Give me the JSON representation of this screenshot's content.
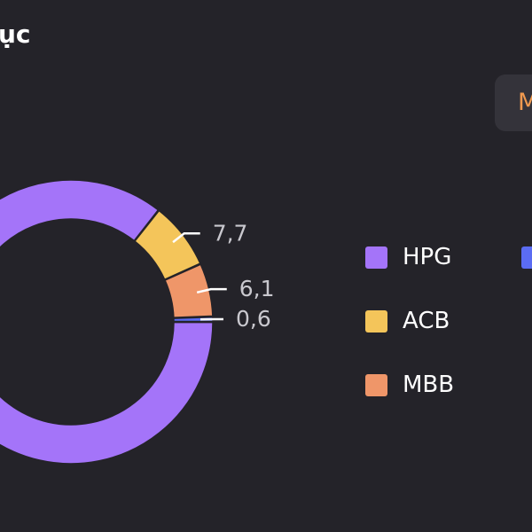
{
  "header": {
    "title": "ục",
    "tab_label": "M"
  },
  "colors": {
    "background": "#242329",
    "leader_line": "#ffffff",
    "value_label": "#c9c8ce"
  },
  "chart_data": {
    "type": "pie",
    "title": "",
    "donut": true,
    "slices": [
      {
        "name": "HPG",
        "value": 85.6,
        "color": "#a474f9"
      },
      {
        "name": "ACB",
        "value": 7.7,
        "label": "7,7",
        "color": "#f4c55a"
      },
      {
        "name": "MBB",
        "value": 6.1,
        "label": "6,1",
        "color": "#ef9669"
      },
      {
        "name": "",
        "value": 0.6,
        "label": "0,6",
        "color": "#5b6cf2"
      }
    ],
    "legend": [
      {
        "label": "HPG",
        "color": "#a474f9"
      },
      {
        "label": "ACB",
        "color": "#f4c55a"
      },
      {
        "label": "MBB",
        "color": "#ef9669"
      },
      {
        "label": "",
        "color": "#5b6cf2"
      }
    ],
    "legend_position": "right"
  }
}
